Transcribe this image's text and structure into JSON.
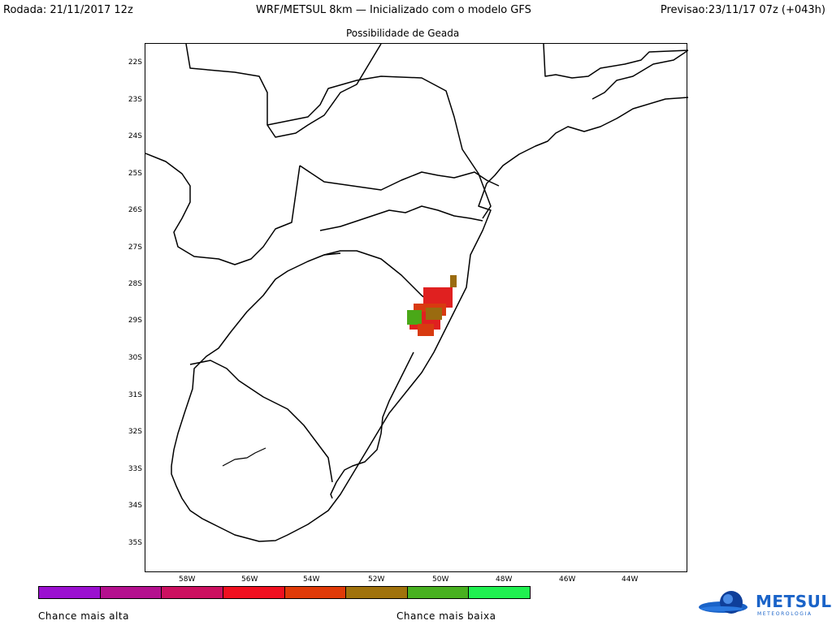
{
  "header": {
    "run": "Rodada: 21/11/2017 12z",
    "model": "WRF/METSUL 8km — Inicializado com o modelo GFS",
    "forecast": "Previsao:23/11/17 07z (+043h)"
  },
  "subtitle": "Possibilidade de Geada",
  "map": {
    "lat_labels": [
      "22S",
      "23S",
      "24S",
      "25S",
      "26S",
      "27S",
      "28S",
      "29S",
      "30S",
      "31S",
      "32S",
      "33S",
      "34S",
      "35S"
    ],
    "lon_labels": [
      "58W",
      "56W",
      "54W",
      "52W",
      "50W",
      "48W",
      "46W",
      "44W"
    ],
    "frost_area_colors": [
      "#e02020",
      "#d83a10",
      "#9a6b10",
      "#4aa818"
    ]
  },
  "legend": {
    "colors": [
      "#9b10d0",
      "#b4108e",
      "#cc1060",
      "#f01020",
      "#e03a08",
      "#a0720c",
      "#48b020",
      "#20f050"
    ],
    "high_label": "Chance mais alta",
    "low_label": "Chance mais baixa"
  },
  "logo": {
    "name": "METSUL",
    "sub": "METEOROLOGIA",
    "color": "#1a63c8"
  }
}
